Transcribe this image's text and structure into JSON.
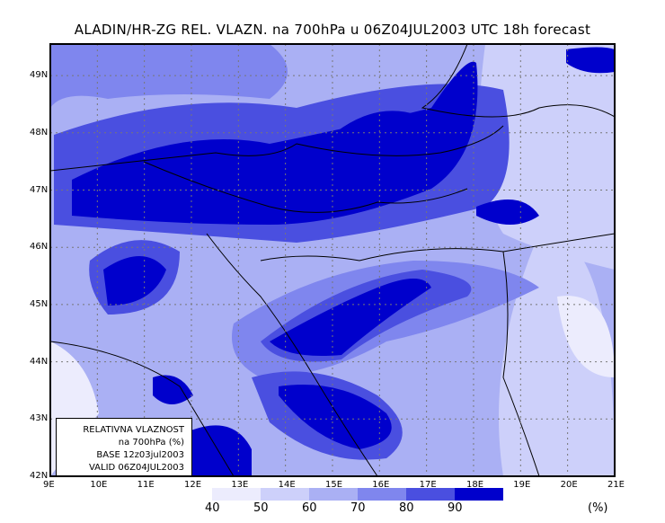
{
  "title": "ALADIN/HR-ZG REL. VLAZN. na 700hPa u 06Z04JUL2003 UTC 18h forecast",
  "lat_labels": [
    "49N",
    "48N",
    "47N",
    "46N",
    "45N",
    "44N",
    "43N",
    "42N"
  ],
  "lon_labels": [
    "9E",
    "10E",
    "11E",
    "12E",
    "13E",
    "14E",
    "15E",
    "16E",
    "17E",
    "18E",
    "19E",
    "20E",
    "21E"
  ],
  "legend_box": [
    "RELATIVNA VLAZNOST",
    "na 700hPa (%)",
    "BASE 12z03jul2003",
    "VALID 06Z04JUL2003"
  ],
  "colorbar": {
    "labels": [
      "40",
      "50",
      "60",
      "70",
      "80",
      "90"
    ],
    "unit": "(%)",
    "colors": [
      "#ececfd",
      "#cdd0fa",
      "#aab0f4",
      "#7f86ee",
      "#4a4fe0",
      "#0000cc"
    ]
  }
}
